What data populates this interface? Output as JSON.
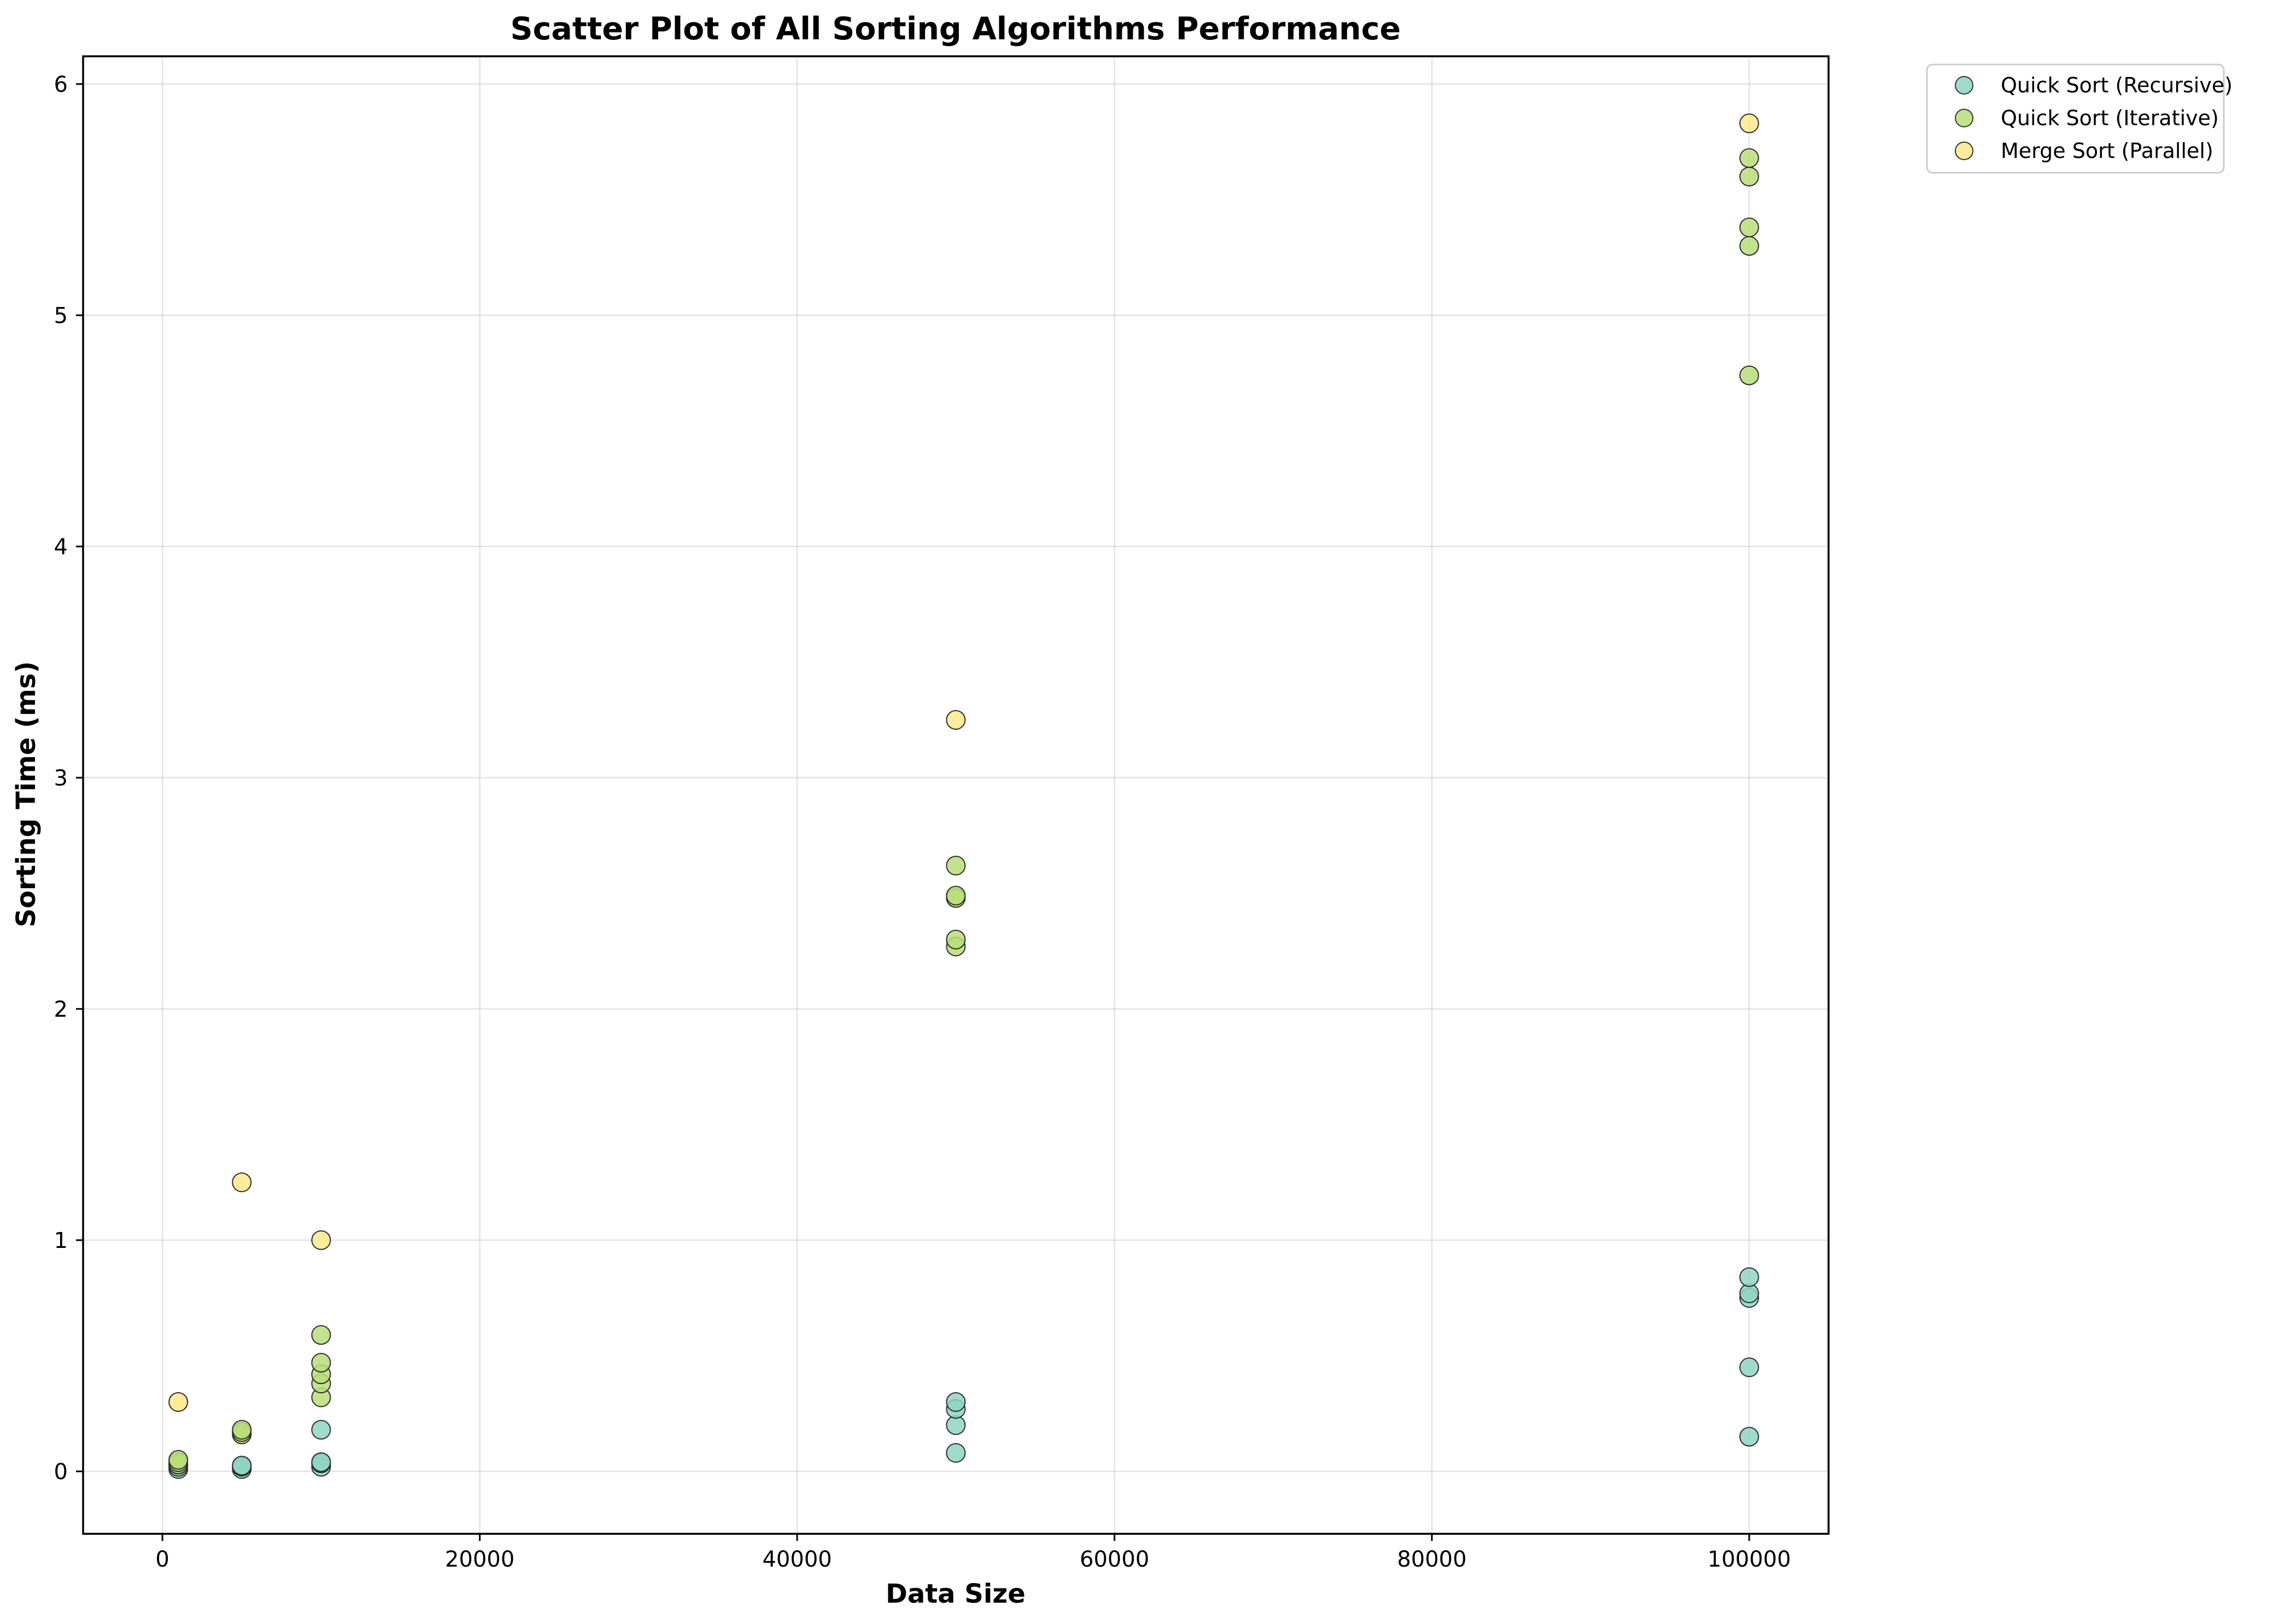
{
  "chart_data": {
    "type": "scatter",
    "title": "Scatter Plot of All Sorting Algorithms Performance",
    "xlabel": "Data Size",
    "ylabel": "Sorting Time (ms)",
    "xlim": [
      -5000,
      105000
    ],
    "ylim": [
      -0.27,
      6.12
    ],
    "xticks": [
      0,
      20000,
      40000,
      60000,
      80000,
      100000
    ],
    "yticks": [
      0,
      1,
      2,
      3,
      4,
      5,
      6
    ],
    "grid": true,
    "legend_position": "outside top-right",
    "series": [
      {
        "name": "Quick Sort (Recursive)",
        "color": "#8fd3c3",
        "points": [
          {
            "x": 1000,
            "y": 0.01
          },
          {
            "x": 1000,
            "y": 0.02
          },
          {
            "x": 1000,
            "y": 0.03
          },
          {
            "x": 5000,
            "y": 0.01
          },
          {
            "x": 5000,
            "y": 0.02
          },
          {
            "x": 5000,
            "y": 0.025
          },
          {
            "x": 10000,
            "y": 0.02
          },
          {
            "x": 10000,
            "y": 0.035
          },
          {
            "x": 10000,
            "y": 0.04
          },
          {
            "x": 10000,
            "y": 0.18
          },
          {
            "x": 50000,
            "y": 0.08
          },
          {
            "x": 50000,
            "y": 0.2
          },
          {
            "x": 50000,
            "y": 0.27
          },
          {
            "x": 50000,
            "y": 0.3
          },
          {
            "x": 100000,
            "y": 0.15
          },
          {
            "x": 100000,
            "y": 0.45
          },
          {
            "x": 100000,
            "y": 0.75
          },
          {
            "x": 100000,
            "y": 0.77
          },
          {
            "x": 100000,
            "y": 0.84
          }
        ]
      },
      {
        "name": "Quick Sort (Iterative)",
        "color": "#b9dd79",
        "points": [
          {
            "x": 1000,
            "y": 0.03
          },
          {
            "x": 1000,
            "y": 0.04
          },
          {
            "x": 1000,
            "y": 0.05
          },
          {
            "x": 5000,
            "y": 0.16
          },
          {
            "x": 5000,
            "y": 0.17
          },
          {
            "x": 5000,
            "y": 0.18
          },
          {
            "x": 10000,
            "y": 0.32
          },
          {
            "x": 10000,
            "y": 0.38
          },
          {
            "x": 10000,
            "y": 0.42
          },
          {
            "x": 10000,
            "y": 0.47
          },
          {
            "x": 10000,
            "y": 0.59
          },
          {
            "x": 50000,
            "y": 2.27
          },
          {
            "x": 50000,
            "y": 2.3
          },
          {
            "x": 50000,
            "y": 2.48
          },
          {
            "x": 50000,
            "y": 2.49
          },
          {
            "x": 50000,
            "y": 2.62
          },
          {
            "x": 100000,
            "y": 4.74
          },
          {
            "x": 100000,
            "y": 5.3
          },
          {
            "x": 100000,
            "y": 5.38
          },
          {
            "x": 100000,
            "y": 5.6
          },
          {
            "x": 100000,
            "y": 5.68
          }
        ]
      },
      {
        "name": "Merge Sort (Parallel)",
        "color": "#fbe98b",
        "points": [
          {
            "x": 1000,
            "y": 0.3
          },
          {
            "x": 5000,
            "y": 1.25
          },
          {
            "x": 10000,
            "y": 1.0
          },
          {
            "x": 50000,
            "y": 3.25
          },
          {
            "x": 100000,
            "y": 5.83
          }
        ]
      }
    ]
  }
}
